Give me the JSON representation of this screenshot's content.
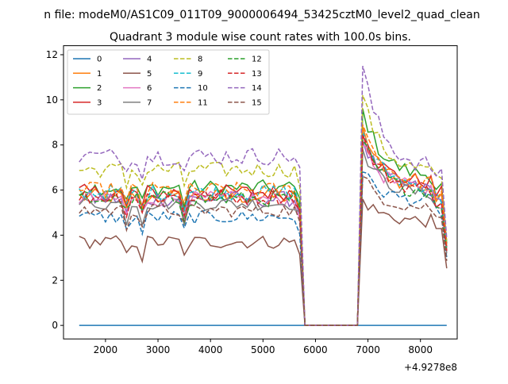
{
  "chart_data": {
    "type": "line",
    "supertitle": "n file: modeM0/AS1C09_011T09_9000006494_53425cztM0_level2_quad_clean",
    "title": "Quadrant 3 module wise count rates with 100.0s bins.",
    "xlabel": "",
    "ylabel": "",
    "x_offset_label": "+4.9278e8",
    "xlim": [
      1200,
      8700
    ],
    "ylim": [
      -0.6,
      12.4
    ],
    "x_ticks": [
      2000,
      3000,
      4000,
      5000,
      6000,
      7000,
      8000
    ],
    "y_ticks": [
      0,
      2,
      4,
      6,
      8,
      10,
      12
    ],
    "x_tick_labels": [
      "2000",
      "3000",
      "4000",
      "5000",
      "6000",
      "7000",
      "8000"
    ],
    "y_tick_labels": [
      "0",
      "2",
      "4",
      "6",
      "8",
      "10",
      "12"
    ],
    "grid": false,
    "legend_position": "upper-left",
    "legend_columns": 4,
    "x_start": 1500,
    "x_step": 100,
    "gap_start": 5800,
    "gap_end": 6800,
    "series": [
      {
        "name": "0",
        "color": "#1f77b4",
        "dash": "solid",
        "base": 0,
        "post": 0,
        "amp": 0,
        "post_peak": 0
      },
      {
        "name": "1",
        "color": "#ff7f0e",
        "dash": "solid",
        "base": 5.7,
        "post": 6.0,
        "amp": 0.35,
        "post_peak": 8.8
      },
      {
        "name": "2",
        "color": "#2ca02c",
        "dash": "solid",
        "base": 6.1,
        "post": 6.6,
        "amp": 0.35,
        "post_peak": 9.6
      },
      {
        "name": "3",
        "color": "#d62728",
        "dash": "solid",
        "base": 5.9,
        "post": 6.3,
        "amp": 0.35,
        "post_peak": 8.5
      },
      {
        "name": "4",
        "color": "#9467bd",
        "dash": "solid",
        "base": 5.6,
        "post": 6.0,
        "amp": 0.35,
        "post_peak": 8.2
      },
      {
        "name": "5",
        "color": "#8c564b",
        "dash": "solid",
        "base": 3.7,
        "post": 4.6,
        "amp": 0.3,
        "post_peak": 5.6
      },
      {
        "name": "6",
        "color": "#e377c2",
        "dash": "solid",
        "base": 5.6,
        "post": 6.0,
        "amp": 0.35,
        "post_peak": 8.0
      },
      {
        "name": "7",
        "color": "#7f7f7f",
        "dash": "solid",
        "base": 5.4,
        "post": 5.8,
        "amp": 0.3,
        "post_peak": 7.8
      },
      {
        "name": "8",
        "color": "#bcbd22",
        "dash": "dashed",
        "base": 6.9,
        "post": 6.8,
        "amp": 0.35,
        "post_peak": 10.2
      },
      {
        "name": "9",
        "color": "#17becf",
        "dash": "dashed",
        "base": 5.9,
        "post": 6.1,
        "amp": 0.35,
        "post_peak": 8.6
      },
      {
        "name": "10",
        "color": "#1f77b4",
        "dash": "dashed",
        "base": 4.8,
        "post": 5.5,
        "amp": 0.3,
        "post_peak": 6.8
      },
      {
        "name": "11",
        "color": "#ff7f0e",
        "dash": "dashed",
        "base": 6.0,
        "post": 6.3,
        "amp": 0.35,
        "post_peak": 8.9
      },
      {
        "name": "12",
        "color": "#2ca02c",
        "dash": "dashed",
        "base": 5.6,
        "post": 5.9,
        "amp": 0.35,
        "post_peak": 8.2
      },
      {
        "name": "13",
        "color": "#d62728",
        "dash": "dashed",
        "base": 5.7,
        "post": 6.0,
        "amp": 0.35,
        "post_peak": 8.4
      },
      {
        "name": "14",
        "color": "#9467bd",
        "dash": "dashed",
        "base": 7.5,
        "post": 7.0,
        "amp": 0.4,
        "post_peak": 11.5
      },
      {
        "name": "15",
        "color": "#8c564b",
        "dash": "dashed",
        "base": 5.1,
        "post": 5.2,
        "amp": 0.3,
        "post_peak": 6.6
      }
    ]
  }
}
